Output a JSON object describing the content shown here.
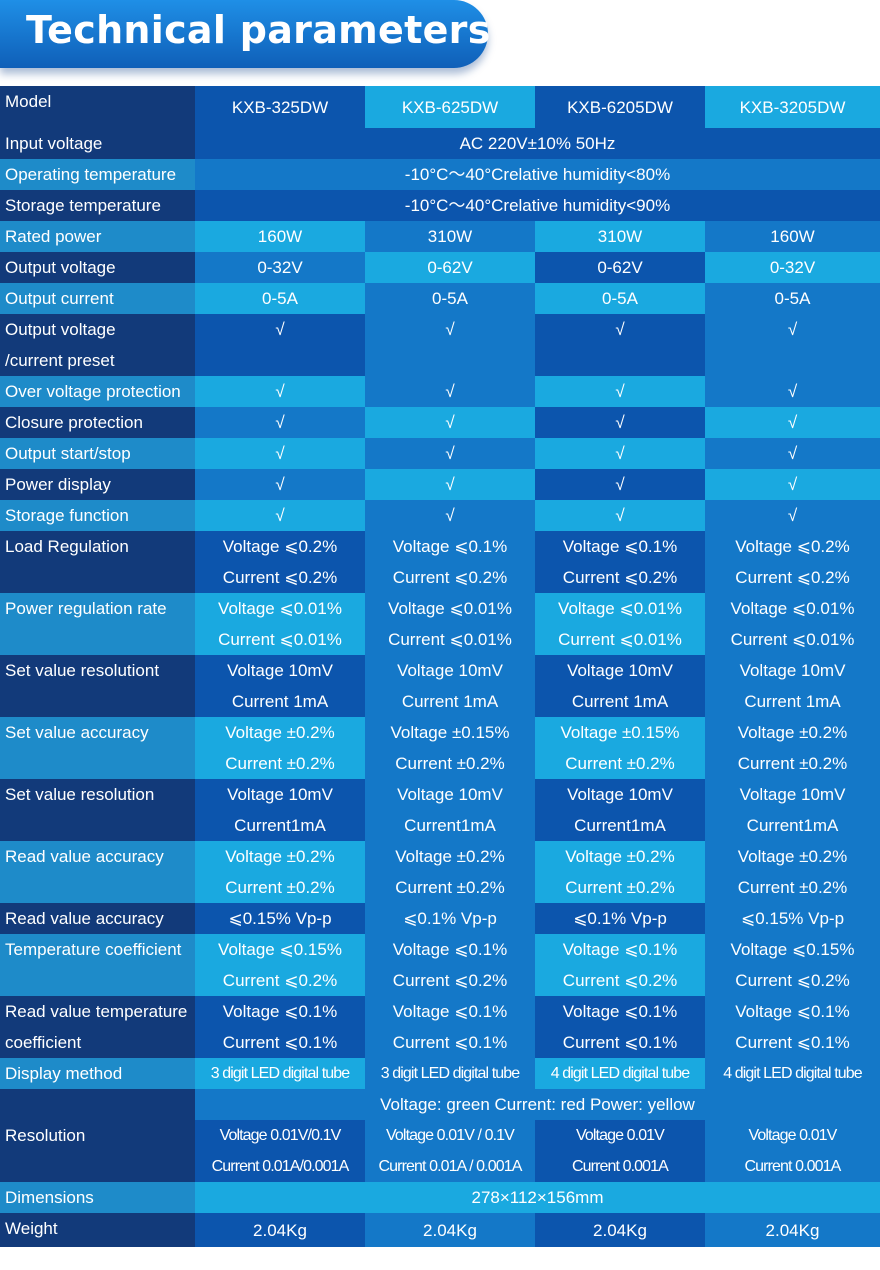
{
  "header": {
    "title": "Technical parameters"
  },
  "models": [
    "KXB-325DW",
    "KXB-625DW",
    "KXB-6205DW",
    "KXB-3205DW"
  ],
  "rows": {
    "model": {
      "label": "Model"
    },
    "input_voltage": {
      "label": "Input voltage",
      "value": "AC 220V±10% 50Hz"
    },
    "operating_temperature": {
      "label": "Operating temperature",
      "value": "-10°C～40°Crelative humidity<80%"
    },
    "storage_temperature": {
      "label": "Storage temperature",
      "value": "-10°C～40°Crelative humidity<90%"
    },
    "rated_power": {
      "label": "Rated power",
      "values": [
        "160W",
        "310W",
        "310W",
        "160W"
      ]
    },
    "output_voltage": {
      "label": "Output voltage",
      "values": [
        "0-32V",
        "0-62V",
        "0-62V",
        "0-32V"
      ]
    },
    "output_current": {
      "label": "Output current",
      "values": [
        "0-5A",
        "0-5A",
        "0-5A",
        "0-5A"
      ]
    },
    "preset": {
      "label_line1": "Output voltage",
      "label_line2": "/current preset",
      "values": [
        "√",
        "√",
        "√",
        "√"
      ]
    },
    "over_voltage": {
      "label": "Over voltage protection",
      "values": [
        "√",
        "√",
        "√",
        "√"
      ]
    },
    "closure": {
      "label": "Closure protection",
      "values": [
        "√",
        "√",
        "√",
        "√"
      ]
    },
    "start_stop": {
      "label": "Output start/stop",
      "values": [
        "√",
        "√",
        "√",
        "√"
      ]
    },
    "power_display": {
      "label": "Power display",
      "values": [
        "√",
        "√",
        "√",
        "√"
      ]
    },
    "storage_function": {
      "label": "Storage function",
      "values": [
        "√",
        "√",
        "√",
        "√"
      ]
    },
    "load_regulation": {
      "label": "Load Regulation",
      "values": [
        [
          "Voltage ⩽0.2%",
          "Current ⩽0.2%"
        ],
        [
          "Voltage ⩽0.1%",
          "Current ⩽0.2%"
        ],
        [
          "Voltage ⩽0.1%",
          "Current ⩽0.2%"
        ],
        [
          "Voltage ⩽0.2%",
          "Current ⩽0.2%"
        ]
      ]
    },
    "power_regulation": {
      "label": "Power regulation rate",
      "values": [
        [
          "Voltage ⩽0.01%",
          "Current ⩽0.01%"
        ],
        [
          "Voltage ⩽0.01%",
          "Current ⩽0.01%"
        ],
        [
          "Voltage ⩽0.01%",
          "Current ⩽0.01%"
        ],
        [
          "Voltage ⩽0.01%",
          "Current ⩽0.01%"
        ]
      ]
    },
    "set_resolutiont": {
      "label": "Set value resolutiont",
      "values": [
        [
          "Voltage 10mV",
          "Current 1mA"
        ],
        [
          "Voltage 10mV",
          "Current 1mA"
        ],
        [
          "Voltage 10mV",
          "Current 1mA"
        ],
        [
          "Voltage 10mV",
          "Current 1mA"
        ]
      ]
    },
    "set_accuracy": {
      "label": "Set value accuracy",
      "values": [
        [
          "Voltage ±0.2%",
          "Current ±0.2%"
        ],
        [
          "Voltage ±0.15%",
          "Current ±0.2%"
        ],
        [
          "Voltage ±0.15%",
          "Current ±0.2%"
        ],
        [
          "Voltage ±0.2%",
          "Current ±0.2%"
        ]
      ]
    },
    "set_resolution": {
      "label": "Set value resolution",
      "values": [
        [
          "Voltage 10mV",
          "Current1mA"
        ],
        [
          "Voltage 10mV",
          "Current1mA"
        ],
        [
          "Voltage 10mV",
          "Current1mA"
        ],
        [
          "Voltage 10mV",
          "Current1mA"
        ]
      ]
    },
    "read_accuracy": {
      "label": "Read value accuracy",
      "values": [
        [
          "Voltage ±0.2%",
          "Current ±0.2%"
        ],
        [
          "Voltage ±0.2%",
          "Current ±0.2%"
        ],
        [
          "Voltage ±0.2%",
          "Current ±0.2%"
        ],
        [
          "Voltage ±0.2%",
          "Current ±0.2%"
        ]
      ]
    },
    "read_accuracy_vpp": {
      "label": "Read value accuracy",
      "values": [
        "⩽0.15% Vp-p",
        "⩽0.1% Vp-p",
        "⩽0.1% Vp-p",
        "⩽0.15% Vp-p"
      ]
    },
    "temp_coefficient": {
      "label": "Temperature coefficient",
      "values": [
        [
          "Voltage ⩽0.15%",
          "Current ⩽0.2%"
        ],
        [
          "Voltage ⩽0.1%",
          "Current ⩽0.2%"
        ],
        [
          "Voltage ⩽0.1%",
          "Current ⩽0.2%"
        ],
        [
          "Voltage ⩽0.15%",
          "Current ⩽0.2%"
        ]
      ]
    },
    "read_temp_coefficient": {
      "label_line1": "Read value temperature",
      "label_line2": "coefficient",
      "values": [
        [
          "Voltage ⩽0.1%",
          "Current ⩽0.1%"
        ],
        [
          "Voltage ⩽0.1%",
          "Current ⩽0.1%"
        ],
        [
          "Voltage ⩽0.1%",
          "Current ⩽0.1%"
        ],
        [
          "Voltage ⩽0.1%",
          "Current ⩽0.1%"
        ]
      ]
    },
    "display_method": {
      "label": "Display method",
      "values": [
        "3 digit LED digital tube",
        "3 digit LED digital tube",
        "4 digit LED digital tube",
        "4 digit LED digital tube"
      ],
      "colors_note": "Voltage: green Current: red Power: yellow"
    },
    "resolution": {
      "label": "Resolution",
      "values": [
        [
          "Voltage 0.01V/0.1V",
          "Current 0.01A/0.001A"
        ],
        [
          "Voltage 0.01V / 0.1V",
          "Current 0.01A / 0.001A"
        ],
        [
          "Voltage 0.01V",
          "Current 0.001A"
        ],
        [
          "Voltage 0.01V",
          "Current 0.001A"
        ]
      ]
    },
    "dimensions": {
      "label": "Dimensions",
      "value": "278×112×156mm"
    },
    "weight": {
      "label": "Weight",
      "values": [
        "2.04Kg",
        "2.04Kg",
        "2.04Kg",
        "2.04Kg"
      ]
    }
  },
  "colors": {
    "label_dark": "#123a7a",
    "label_light": "#1e8bc9",
    "col_bright": "#1aa9e0",
    "col_mid": "#1478c8",
    "col_deep": "#0c55ad",
    "title_blue": "#1576d1"
  }
}
